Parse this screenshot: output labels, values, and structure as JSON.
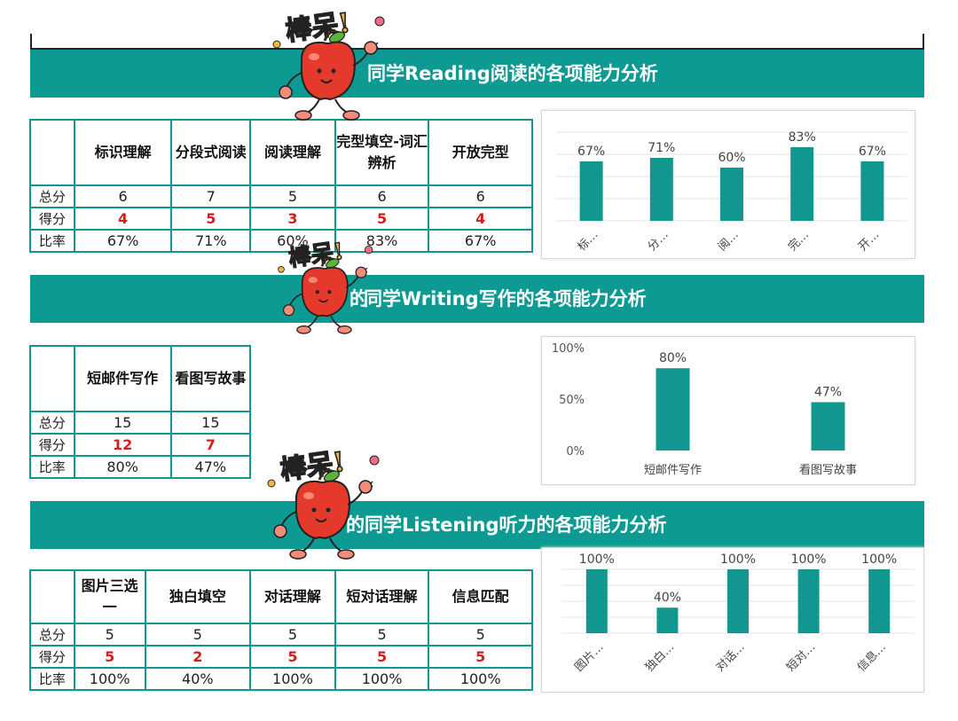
{
  "reading": {
    "banner": "同学Reading阅读的各项能力分析",
    "headers": [
      "标识理解",
      "分段式阅读",
      "阅读理解",
      "完型填空-词汇辨析",
      "开放完型"
    ],
    "rows": {
      "total_label": "总分",
      "score_label": "得分",
      "rate_label": "比率"
    },
    "total": [
      "6",
      "7",
      "5",
      "6",
      "6"
    ],
    "score": [
      "4",
      "5",
      "3",
      "5",
      "4"
    ],
    "rate": [
      "67%",
      "71%",
      "60%",
      "83%",
      "67%"
    ]
  },
  "writing": {
    "banner": "同学Writing写作的各项能力分析",
    "banner_prefix": "的",
    "headers": [
      "短邮件写作",
      "看图写故事"
    ],
    "rows": {
      "total_label": "总分",
      "score_label": "得分",
      "rate_label": "比率"
    },
    "total": [
      "15",
      "15"
    ],
    "score": [
      "12",
      "7"
    ],
    "rate": [
      "80%",
      "47%"
    ]
  },
  "listening": {
    "banner": "的同学Listening听力的各项能力分析",
    "headers": [
      "图片三选一",
      "独白填空",
      "对话理解",
      "短对话理解",
      "信息匹配"
    ],
    "rows": {
      "total_label": "总分",
      "score_label": "得分",
      "rate_label": "比率"
    },
    "total": [
      "5",
      "5",
      "5",
      "5",
      "5"
    ],
    "score": [
      "5",
      "2",
      "5",
      "5",
      "5"
    ],
    "rate": [
      "100%",
      "40%",
      "100%",
      "100%",
      "100%"
    ]
  },
  "sticker": {
    "text": "棒呆!"
  },
  "chart_data": [
    {
      "type": "bar",
      "categories": [
        "标…",
        "分…",
        "阅…",
        "完…",
        "开…"
      ],
      "values": [
        67,
        71,
        60,
        83,
        67
      ],
      "data_labels": [
        "67%",
        "71%",
        "60%",
        "83%",
        "67%"
      ],
      "ylim": [
        0,
        100
      ],
      "y_axis_visible": false,
      "grid": true,
      "bar_color": "#11978f"
    },
    {
      "type": "bar",
      "categories": [
        "短邮件写作",
        "看图写故事"
      ],
      "values": [
        80,
        47
      ],
      "data_labels": [
        "80%",
        "47%"
      ],
      "ylim": [
        0,
        100
      ],
      "y_ticks": [
        "0%",
        "50%",
        "100%"
      ],
      "grid": false,
      "bar_color": "#11978f"
    },
    {
      "type": "bar",
      "categories": [
        "图片…",
        "独白…",
        "对话…",
        "短对…",
        "信息…"
      ],
      "values": [
        100,
        40,
        100,
        100,
        100
      ],
      "data_labels": [
        "100%",
        "40%",
        "100%",
        "100%",
        "100%"
      ],
      "ylim": [
        0,
        100
      ],
      "y_axis_visible": false,
      "grid": true,
      "bar_color": "#11978f"
    }
  ]
}
